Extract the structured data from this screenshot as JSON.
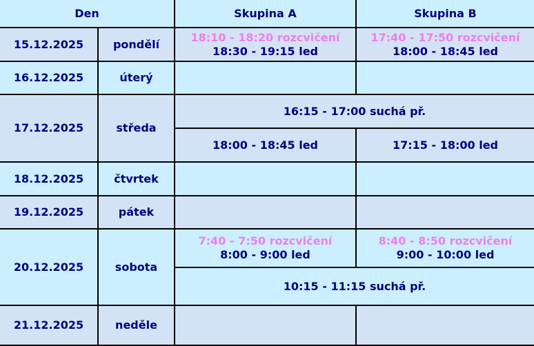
{
  "header": {
    "day": "Den",
    "group_a": "Skupina A",
    "group_b": "Skupina B"
  },
  "colors": {
    "text": "#000080",
    "warmup": "#ee7ee9",
    "row_light": "#ccefff",
    "row_gray": "#d3e3f5"
  },
  "rows": [
    {
      "date": "15.12.2025",
      "weekday": "pondělí",
      "a_warmup": "18:10 - 18:20 rozcvičení",
      "a_main": "18:30 - 19:15 led",
      "b_warmup": "17:40 - 17:50 rozcvičení",
      "b_main": "18:00 - 18:45 led"
    },
    {
      "date": "16.12.2025",
      "weekday": "úterý"
    },
    {
      "date": "17.12.2025",
      "weekday": "středa",
      "shared": "16:15 - 17:00 suchá př.",
      "a_main": "18:00 - 18:45 led",
      "b_main": "17:15 - 18:00 led"
    },
    {
      "date": "18.12.2025",
      "weekday": "čtvrtek"
    },
    {
      "date": "19.12.2025",
      "weekday": "pátek"
    },
    {
      "date": "20.12.2025",
      "weekday": "sobota",
      "a_warmup": "7:40 - 7:50 rozcvičení",
      "a_main": "8:00 - 9:00 led",
      "b_warmup": "8:40 - 8:50 rozcvičení",
      "b_main": "9:00 - 10:00 led",
      "shared": "10:15 - 11:15 suchá př."
    },
    {
      "date": "21.12.2025",
      "weekday": "neděle"
    }
  ]
}
